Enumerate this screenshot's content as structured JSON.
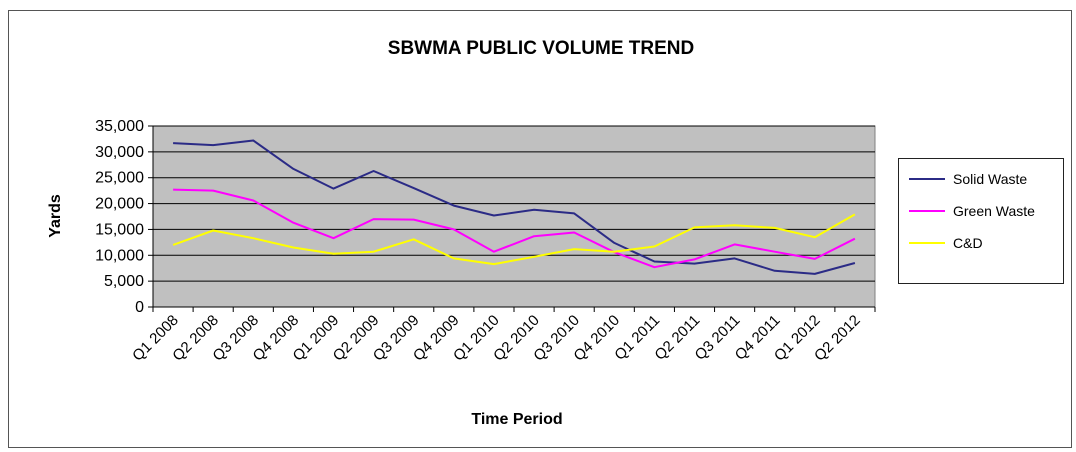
{
  "chart_data": {
    "type": "line",
    "title": "SBWMA PUBLIC VOLUME TREND",
    "xlabel": "Time Period",
    "ylabel": "Yards",
    "ylim": [
      0,
      35000
    ],
    "yticks": [
      "0",
      "5,000",
      "10,000",
      "15,000",
      "20,000",
      "25,000",
      "30,000",
      "35,000"
    ],
    "categories": [
      "Q1 2008",
      "Q2 2008",
      "Q3 2008",
      "Q4 2008",
      "Q1 2009",
      "Q2 2009",
      "Q3 2009",
      "Q4 2009",
      "Q1 2010",
      "Q2 2010",
      "Q3 2010",
      "Q4 2010",
      "Q1 2011",
      "Q2 2011",
      "Q3 2011",
      "Q4 2011",
      "Q1 2012",
      "Q2 2012"
    ],
    "grid": true,
    "legend_position": "right",
    "plot_background": "#c0c0c0",
    "series": [
      {
        "name": "Solid Waste",
        "color": "#2b2b86",
        "values": [
          31700,
          31300,
          32200,
          26700,
          22900,
          26300,
          23000,
          19600,
          17700,
          18800,
          18100,
          12400,
          8800,
          8400,
          9400,
          7000,
          6400,
          8500
        ]
      },
      {
        "name": "Green Waste",
        "color": "#ff00ff",
        "values": [
          22700,
          22500,
          20600,
          16300,
          13300,
          17000,
          16900,
          15000,
          10700,
          13700,
          14400,
          10600,
          7700,
          9200,
          12100,
          10700,
          9300,
          13200
        ]
      },
      {
        "name": "C&D",
        "color": "#ffff00",
        "values": [
          12000,
          14800,
          13300,
          11500,
          10300,
          10700,
          13100,
          9400,
          8300,
          9700,
          11200,
          10700,
          11700,
          15400,
          15800,
          15300,
          13500,
          17900
        ]
      }
    ]
  }
}
